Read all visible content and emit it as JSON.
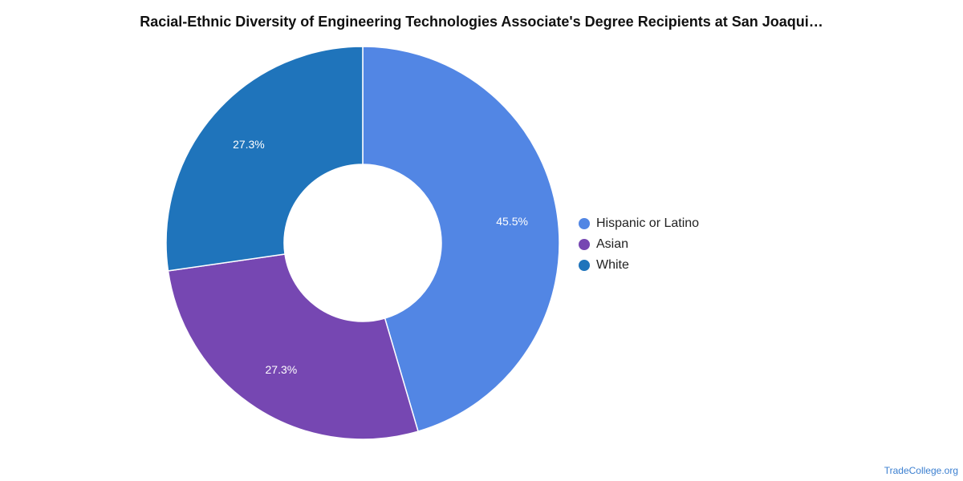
{
  "chart_data": {
    "type": "pie",
    "variant": "donut",
    "title": "Racial-Ethnic Diversity of Engineering Technologies Associate's Degree Recipients at San Joaqui…",
    "legend_position": "right",
    "series": [
      {
        "name": "Hispanic or Latino",
        "value": 45.5,
        "label": "45.5%",
        "color": "#5286e4"
      },
      {
        "name": "Asian",
        "value": 27.3,
        "label": "27.3%",
        "color": "#7647b2"
      },
      {
        "name": "White",
        "value": 27.3,
        "label": "27.3%",
        "color": "#1f74bb"
      }
    ]
  },
  "watermark": "TradeCollege.org"
}
